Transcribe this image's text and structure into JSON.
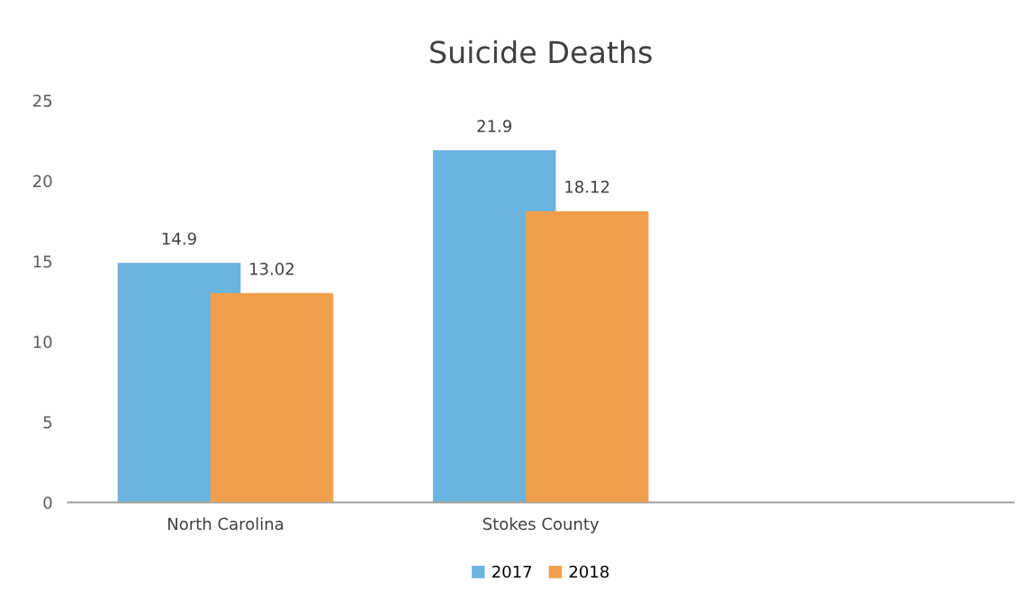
{
  "chart_data": {
    "type": "bar",
    "title": "Suicide Deaths",
    "categories": [
      "North Carolina",
      "Stokes County",
      null
    ],
    "series": [
      {
        "name": "2017",
        "color": "#6ab4e0",
        "values": [
          14.9,
          21.9,
          null
        ]
      },
      {
        "name": "2018",
        "color": "#f0a04c",
        "values": [
          13.02,
          18.12,
          null
        ]
      }
    ],
    "ylim": [
      0,
      25
    ],
    "yticks": [
      0,
      5,
      10,
      15,
      20,
      25
    ],
    "data_labels": true,
    "legend": "bottom",
    "grid": false
  }
}
